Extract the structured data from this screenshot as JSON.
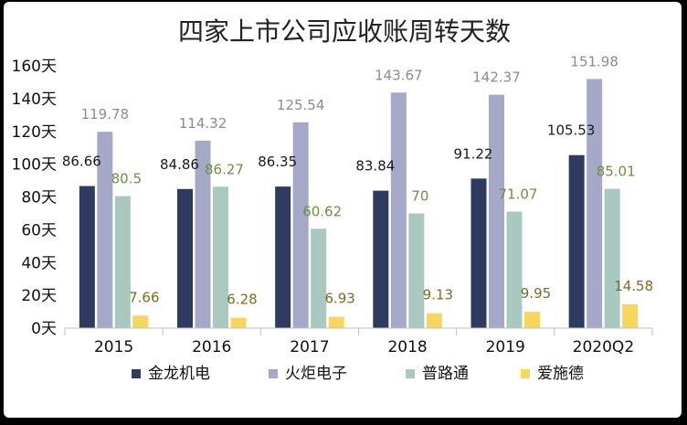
{
  "chart_data": {
    "type": "bar",
    "title": "四家上市公司应收账周转天数",
    "categories": [
      "2015",
      "2016",
      "2017",
      "2018",
      "2019",
      "2020Q2"
    ],
    "ylim": [
      0,
      160
    ],
    "yticks": [
      "0天",
      "20天",
      "40天",
      "60天",
      "80天",
      "100天",
      "120天",
      "140天",
      "160天"
    ],
    "grid": false,
    "legend_position": "bottom",
    "series": [
      {
        "name": "金龙机电",
        "color": "#2E3B5E",
        "label_color": "#1a1a1a",
        "values": [
          86.66,
          84.86,
          86.35,
          83.84,
          91.22,
          105.53
        ],
        "labels": [
          "86.66",
          "84.86",
          "86.35",
          "83.84",
          "91.22",
          "105.53"
        ]
      },
      {
        "name": "火炬电子",
        "color": "#A6A8C8",
        "label_color": "#8C8C8C",
        "values": [
          119.78,
          114.32,
          125.54,
          143.67,
          142.37,
          151.98
        ],
        "labels": [
          "119.78",
          "114.32",
          "125.54",
          "143.67",
          "142.37",
          "151.98"
        ]
      },
      {
        "name": "普路通",
        "color": "#A9C9C0",
        "label_color": "#6F8F42",
        "values": [
          80.5,
          86.27,
          60.62,
          70,
          71.07,
          85.01
        ],
        "labels": [
          "80.5",
          "86.27",
          "60.62",
          "70",
          "71.07",
          "85.01"
        ]
      },
      {
        "name": "爱施德",
        "color": "#F7D65E",
        "label_color": "#7A6E22",
        "values": [
          7.66,
          6.28,
          6.93,
          9.13,
          9.95,
          14.58
        ],
        "labels": [
          "7.66",
          "6.28",
          "6.93",
          "9.13",
          "9.95",
          "14.58"
        ]
      }
    ]
  }
}
